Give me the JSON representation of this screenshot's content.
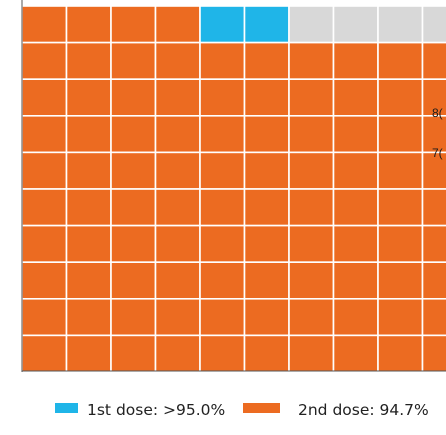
{
  "chart_data": {
    "type": "waffle",
    "columns": 12,
    "rows": 10,
    "cells": {
      "second_dose_top_row": 4,
      "first_dose_top_row": 2,
      "not_covered_top_row": 6
    },
    "colors": {
      "first_dose": "#1fb5e8",
      "second_dose": "#ec6b21",
      "not_covered": "#d8d8d8",
      "gridline": "#ffffff",
      "axis": "#555555"
    },
    "partial_labels": [
      "8(",
      "7("
    ],
    "legend": [
      {
        "label": "1st dose: >95.0%",
        "color": "#1fb5e8"
      },
      {
        "label": "2nd dose: 94.7%",
        "color": "#ec6b21"
      }
    ]
  }
}
